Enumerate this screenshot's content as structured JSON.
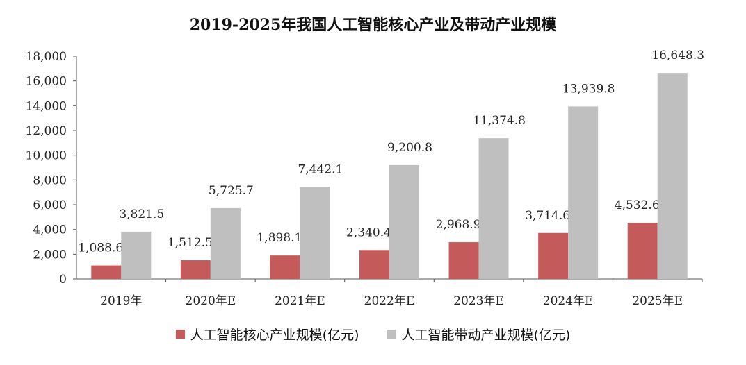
{
  "chart_data": {
    "type": "bar",
    "title": "2019-2025年我国人工智能核心产业及带动产业规模",
    "categories": [
      "2019年",
      "2020年E",
      "2021年E",
      "2022年E",
      "2023年E",
      "2024年E",
      "2025年E"
    ],
    "series": [
      {
        "name": "人工智能核心产业规模(亿元)",
        "color": "#c55a5a",
        "values": [
          1088.6,
          1512.5,
          1898.1,
          2340.4,
          2968.9,
          3714.6,
          4532.6
        ],
        "labels": [
          "1,088.6",
          "1,512.5",
          "1,898.1",
          "2,340.4",
          "2,968.9",
          "3,714.6",
          "4,532.6"
        ]
      },
      {
        "name": "人工智能带动产业规模(亿元)",
        "color": "#bfbfbf",
        "values": [
          3821.5,
          5725.7,
          7442.1,
          9200.8,
          11374.8,
          13939.8,
          16648.3
        ],
        "labels": [
          "3,821.5",
          "5,725.7",
          "7,442.1",
          "9,200.8",
          "11,374.8",
          "13,939.8",
          "16,648.3"
        ]
      }
    ],
    "yticks": [
      "0",
      "2,000",
      "4,000",
      "6,000",
      "8,000",
      "10,000",
      "12,000",
      "14,000",
      "16,000",
      "18,000"
    ],
    "ylim": [
      0,
      18000
    ],
    "xlabel": "",
    "ylabel": "",
    "legend": "bottom-center"
  }
}
